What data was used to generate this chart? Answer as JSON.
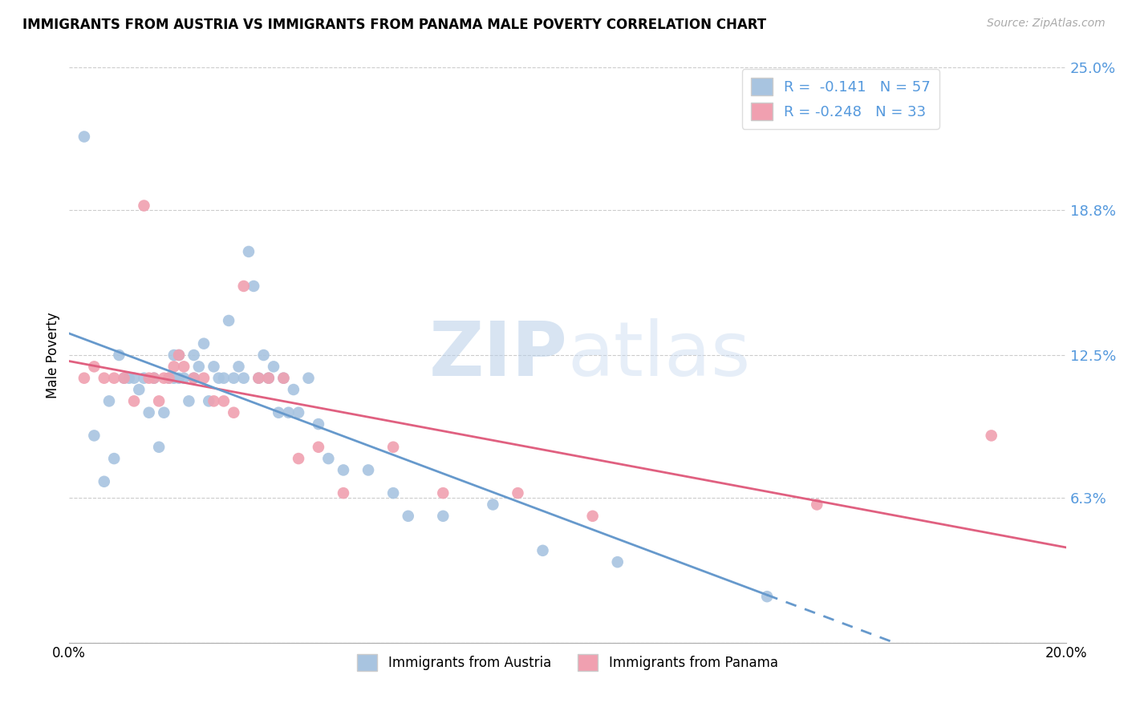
{
  "title": "IMMIGRANTS FROM AUSTRIA VS IMMIGRANTS FROM PANAMA MALE POVERTY CORRELATION CHART",
  "source": "Source: ZipAtlas.com",
  "ylabel": "Male Poverty",
  "xlim": [
    0.0,
    0.2
  ],
  "ylim": [
    0.0,
    0.25
  ],
  "yticks": [
    0.0,
    0.063,
    0.125,
    0.188,
    0.25
  ],
  "ytick_labels": [
    "",
    "6.3%",
    "12.5%",
    "18.8%",
    "25.0%"
  ],
  "xticks": [
    0.0,
    0.05,
    0.1,
    0.15,
    0.2
  ],
  "xtick_labels": [
    "0.0%",
    "",
    "",
    "",
    "20.0%"
  ],
  "austria_R": -0.141,
  "austria_N": 57,
  "panama_R": -0.248,
  "panama_N": 33,
  "austria_color": "#a8c4e0",
  "panama_color": "#f0a0b0",
  "trend_austria_color": "#6699cc",
  "trend_panama_color": "#e06080",
  "watermark_zip": "ZIP",
  "watermark_atlas": "atlas",
  "austria_scatter_x": [
    0.003,
    0.005,
    0.007,
    0.008,
    0.009,
    0.01,
    0.011,
    0.012,
    0.013,
    0.014,
    0.015,
    0.016,
    0.017,
    0.018,
    0.019,
    0.02,
    0.021,
    0.021,
    0.022,
    0.022,
    0.023,
    0.024,
    0.025,
    0.025,
    0.026,
    0.027,
    0.028,
    0.029,
    0.03,
    0.031,
    0.032,
    0.033,
    0.034,
    0.035,
    0.036,
    0.037,
    0.038,
    0.039,
    0.04,
    0.041,
    0.042,
    0.043,
    0.044,
    0.045,
    0.046,
    0.048,
    0.05,
    0.052,
    0.055,
    0.06,
    0.065,
    0.068,
    0.075,
    0.085,
    0.095,
    0.11,
    0.14
  ],
  "austria_scatter_y": [
    0.22,
    0.09,
    0.07,
    0.105,
    0.08,
    0.125,
    0.115,
    0.115,
    0.115,
    0.11,
    0.115,
    0.1,
    0.115,
    0.085,
    0.1,
    0.115,
    0.115,
    0.125,
    0.115,
    0.125,
    0.115,
    0.105,
    0.125,
    0.115,
    0.12,
    0.13,
    0.105,
    0.12,
    0.115,
    0.115,
    0.14,
    0.115,
    0.12,
    0.115,
    0.17,
    0.155,
    0.115,
    0.125,
    0.115,
    0.12,
    0.1,
    0.115,
    0.1,
    0.11,
    0.1,
    0.115,
    0.095,
    0.08,
    0.075,
    0.075,
    0.065,
    0.055,
    0.055,
    0.06,
    0.04,
    0.035,
    0.02
  ],
  "panama_scatter_x": [
    0.003,
    0.005,
    0.007,
    0.009,
    0.011,
    0.013,
    0.015,
    0.016,
    0.017,
    0.018,
    0.019,
    0.02,
    0.021,
    0.022,
    0.023,
    0.025,
    0.027,
    0.029,
    0.031,
    0.033,
    0.035,
    0.038,
    0.04,
    0.043,
    0.046,
    0.05,
    0.055,
    0.065,
    0.075,
    0.09,
    0.105,
    0.15,
    0.185
  ],
  "panama_scatter_y": [
    0.115,
    0.12,
    0.115,
    0.115,
    0.115,
    0.105,
    0.19,
    0.115,
    0.115,
    0.105,
    0.115,
    0.115,
    0.12,
    0.125,
    0.12,
    0.115,
    0.115,
    0.105,
    0.105,
    0.1,
    0.155,
    0.115,
    0.115,
    0.115,
    0.08,
    0.085,
    0.065,
    0.085,
    0.065,
    0.065,
    0.055,
    0.06,
    0.09
  ],
  "trend_x_start": 0.0,
  "trend_x_end": 0.2
}
